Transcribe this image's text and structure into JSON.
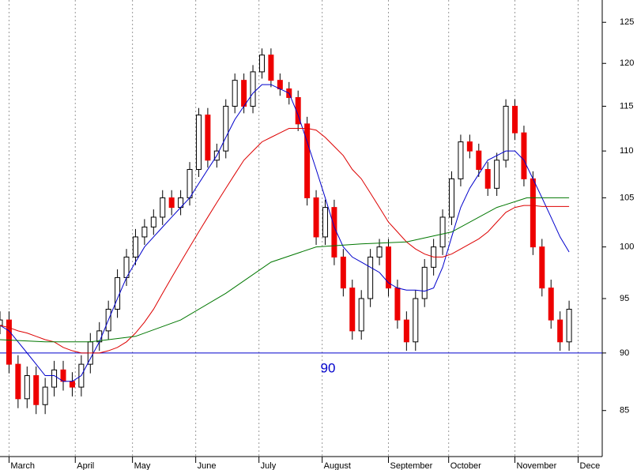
{
  "chart_data": {
    "type": "candlestick",
    "log_y": true,
    "grid": true,
    "up_color": "#ffffff",
    "down_color": "#ee0000",
    "wick_color": "#000000",
    "xlim": [
      0,
      200
    ],
    "ylim": [
      81.2,
      127.8
    ],
    "yticks": [
      85,
      90,
      95,
      100,
      105,
      110,
      115,
      120,
      125
    ],
    "xticks": [
      {
        "value": 3,
        "label": "March"
      },
      {
        "value": 25,
        "label": "April"
      },
      {
        "value": 44,
        "label": "May"
      },
      {
        "value": 65,
        "label": "June"
      },
      {
        "value": 86,
        "label": "July"
      },
      {
        "value": 107,
        "label": "August"
      },
      {
        "value": 129,
        "label": "September"
      },
      {
        "value": 149,
        "label": "October"
      },
      {
        "value": 171,
        "label": "November"
      },
      {
        "value": 192,
        "label": "Dece"
      }
    ],
    "x": [
      0,
      3,
      6,
      9,
      12,
      15,
      18,
      21,
      24,
      27,
      30,
      33,
      36,
      39,
      42,
      45,
      48,
      51,
      54,
      57,
      60,
      63,
      66,
      69,
      72,
      75,
      78,
      81,
      84,
      87,
      90,
      93,
      96,
      99,
      102,
      105,
      108,
      111,
      114,
      117,
      120,
      123,
      126,
      129,
      132,
      135,
      138,
      141,
      144,
      147,
      150,
      153,
      156,
      159,
      162,
      165,
      168,
      171,
      174,
      177,
      180,
      183,
      186,
      189
    ],
    "open": [
      92.5,
      93,
      89,
      86,
      88,
      85.5,
      87,
      88.5,
      87.5,
      87,
      89,
      91,
      92,
      94,
      97,
      99,
      101,
      102,
      103,
      105,
      104,
      105,
      108,
      114,
      109,
      110,
      115,
      118,
      115,
      119,
      121,
      118,
      117,
      116,
      113,
      105,
      101,
      104,
      99,
      96,
      92,
      95,
      99,
      100,
      96,
      93,
      91,
      95,
      98,
      100,
      103,
      107,
      111,
      110,
      108,
      106,
      109,
      115,
      112,
      107,
      100,
      96,
      93,
      91
    ],
    "high": [
      93.8,
      93.8,
      89.8,
      88.8,
      88.8,
      87.8,
      89.3,
      89.3,
      88.3,
      89.8,
      91.8,
      92.8,
      94.8,
      97.8,
      99.8,
      101.8,
      102.8,
      103.8,
      105.8,
      105.8,
      105.8,
      108.8,
      114.8,
      114.8,
      110.8,
      115.8,
      118.8,
      118.8,
      119.8,
      121.8,
      121.8,
      118.8,
      117.8,
      116.8,
      113.8,
      105.8,
      104.8,
      104.8,
      99.8,
      96.8,
      95.8,
      99.8,
      100.8,
      100.8,
      96.8,
      93.8,
      95.8,
      98.8,
      100.8,
      103.8,
      107.8,
      111.8,
      111.8,
      110.8,
      108.8,
      109.8,
      115.8,
      115.8,
      112.8,
      107.8,
      100.8,
      96.8,
      93.8,
      94.8
    ],
    "low": [
      91.7,
      88.2,
      85.2,
      85.2,
      84.7,
      84.7,
      86.2,
      86.7,
      86.2,
      86.2,
      88.2,
      90.2,
      91.2,
      93.2,
      96.2,
      98.2,
      100.2,
      101.2,
      102.2,
      103.2,
      103.2,
      104.2,
      107.2,
      108.2,
      108.2,
      109.2,
      114.2,
      114.2,
      114.2,
      118.2,
      117.2,
      116.2,
      115.2,
      112.2,
      104.2,
      100.2,
      100.2,
      98.2,
      95.2,
      91.2,
      91.2,
      94.2,
      98.2,
      95.2,
      92.2,
      90.2,
      90.2,
      94.2,
      97.2,
      99.2,
      102.2,
      106.2,
      109.2,
      107.2,
      105.2,
      105.2,
      108.2,
      111.2,
      106.2,
      99.2,
      95.2,
      92.2,
      90.2,
      90.2
    ],
    "close": [
      93,
      89,
      86,
      88,
      85.5,
      87,
      88.5,
      87.5,
      87,
      89,
      91,
      92,
      94,
      97,
      99,
      101,
      102,
      103,
      105,
      104,
      105,
      108,
      114,
      109,
      110,
      115,
      118,
      115,
      119,
      121,
      118,
      117,
      116,
      113,
      105,
      101,
      104,
      99,
      96,
      92,
      95,
      99,
      100,
      96,
      93,
      91,
      95,
      98,
      100,
      103,
      107,
      111,
      110,
      108,
      106,
      109,
      115,
      112,
      107,
      100,
      96,
      93,
      91,
      94
    ],
    "series": [
      {
        "color": "#0000cc",
        "values": [
          92.5,
          92,
          91,
          90,
          89,
          88,
          88,
          87.5,
          87.5,
          88,
          89.5,
          91,
          93,
          95,
          97,
          98.5,
          100,
          101,
          102,
          103,
          104,
          105,
          106.5,
          108,
          109.5,
          111.5,
          113.5,
          115,
          116.5,
          117.5,
          117.5,
          117,
          116.5,
          114,
          111,
          108,
          105,
          102,
          100,
          99,
          98.5,
          98,
          97.5,
          96.5,
          96,
          95.8,
          95.8,
          95.7,
          96,
          98,
          101,
          104,
          106,
          107.5,
          109,
          109.5,
          110,
          110,
          109,
          107,
          105,
          103,
          101,
          99.5
        ]
      },
      {
        "color": "#dd0000",
        "values": [
          92.5,
          92.3,
          92,
          91.8,
          91.5,
          91.2,
          91,
          90.5,
          90.2,
          90,
          90,
          90,
          90.2,
          90.5,
          91,
          91.8,
          92.8,
          94,
          95.5,
          97,
          98.5,
          100,
          101.5,
          103,
          104.5,
          106,
          107.5,
          109,
          110,
          111,
          111.5,
          112,
          112.5,
          112.5,
          112.5,
          112.3,
          111.5,
          110.5,
          109.5,
          108,
          107,
          105.5,
          104,
          102.5,
          101.5,
          100.5,
          99.8,
          99.3,
          99,
          99,
          99.3,
          99.8,
          100.3,
          100.8,
          101.5,
          102.5,
          103.5,
          104,
          104.2,
          104.2,
          104.1,
          104.1,
          104.1,
          104.1
        ]
      },
      {
        "color": "#007700",
        "x": [
          0,
          15,
          30,
          45,
          60,
          75,
          90,
          105,
          120,
          135,
          150,
          165,
          175,
          189
        ],
        "values": [
          91.2,
          91,
          91,
          91.5,
          93,
          95.5,
          98.5,
          100,
          100.3,
          100.5,
          101.5,
          104,
          105,
          105
        ]
      }
    ],
    "reference_line": {
      "value": 90,
      "color": "#0000cc"
    }
  }
}
